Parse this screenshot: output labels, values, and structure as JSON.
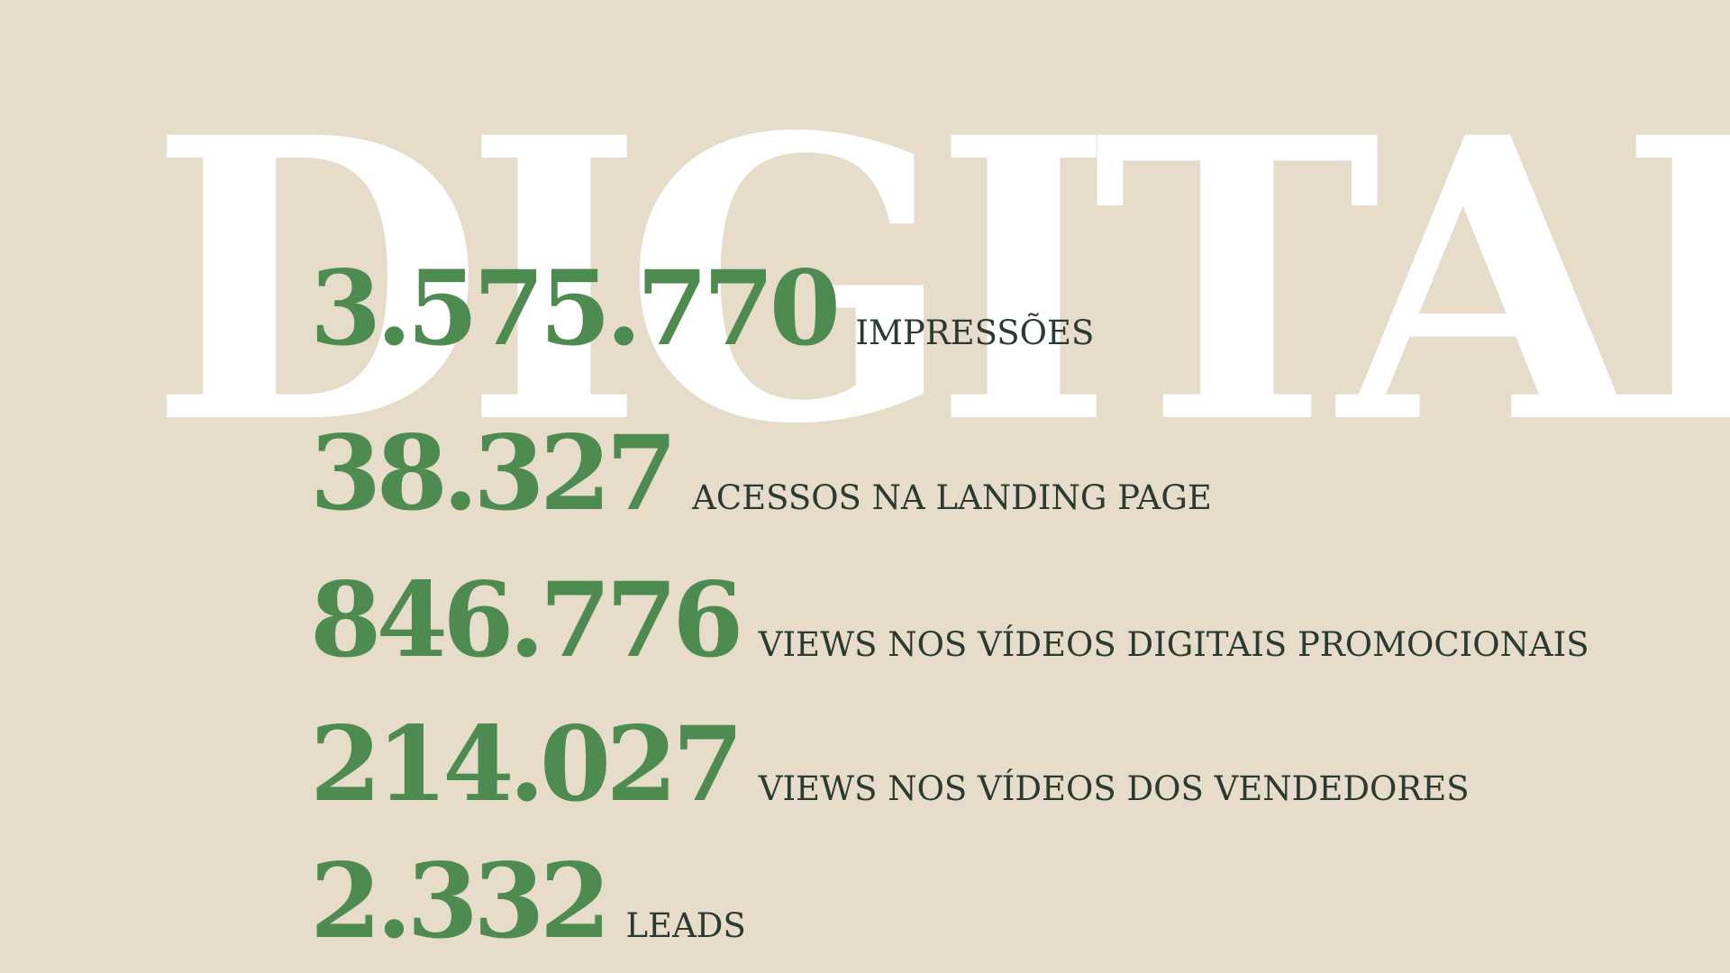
{
  "slide": {
    "watermark": {
      "text": "DIGITAL",
      "color": "#ffffff"
    },
    "theme": {
      "background": "#e6dcc9",
      "accent_green": "#4e8b50",
      "label_dark": "#2b3a31"
    },
    "stats": [
      {
        "value": "3.575.770",
        "label": "IMPRESSÕES"
      },
      {
        "value": "38.327",
        "label": "ACESSOS NA LANDING PAGE"
      },
      {
        "value": "846.776",
        "label": "VIEWS NOS VÍDEOS DIGITAIS PROMOCIONAIS"
      },
      {
        "value": "214.027",
        "label": "VIEWS NOS VÍDEOS DOS VENDEDORES"
      },
      {
        "value": "2.332",
        "label": "LEADS"
      }
    ]
  }
}
